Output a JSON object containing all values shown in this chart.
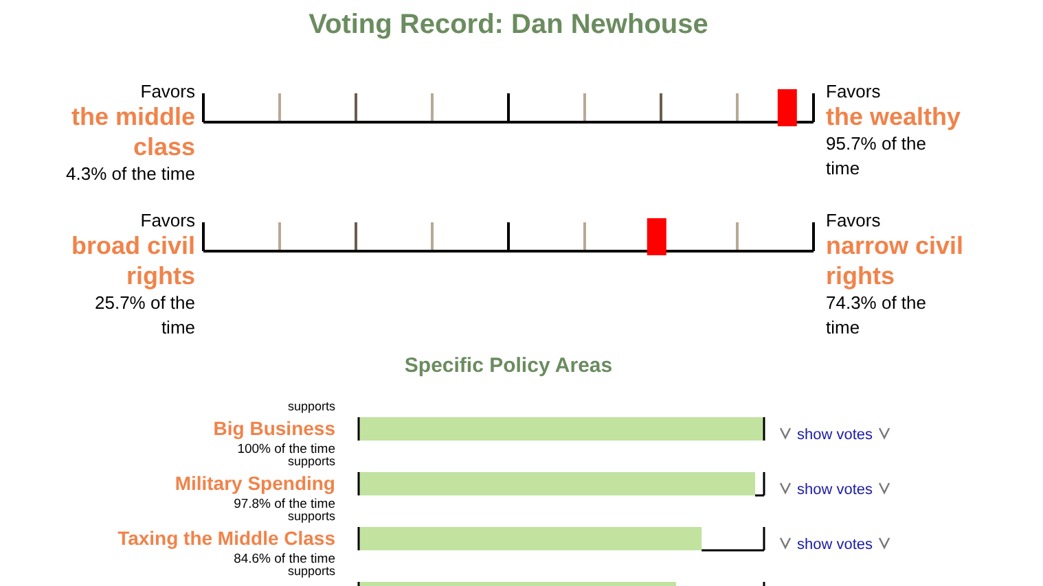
{
  "chart_data": [
    {
      "type": "other",
      "title": "Voting Record: Dan Newhouse",
      "categories": [
        "the middle class",
        "the wealthy"
      ],
      "values": [
        4.3,
        95.7
      ],
      "value_labels": [
        "4.3% of the time",
        "95.7% of the time"
      ],
      "annotations": [
        "Favors",
        "Favors"
      ],
      "color": "#ff0000"
    },
    {
      "type": "other",
      "categories": [
        "broad civil rights",
        "narrow civil rights"
      ],
      "values": [
        25.7,
        74.3
      ],
      "value_labels": [
        "25.7% of the time",
        "74.3% of the time"
      ],
      "annotations": [
        "Favors",
        "Favors"
      ],
      "color": "#ff0000"
    },
    {
      "type": "bar",
      "orientation": "horizontal",
      "title": "Specific Policy Areas",
      "categories": [
        "Big Business",
        "Military Spending",
        "Taxing the Middle Class",
        null
      ],
      "values": [
        100,
        97.8,
        84.6,
        78.3
      ],
      "value_labels": [
        "100% of the time",
        "97.8% of the time",
        "84.6% of the time",
        null
      ],
      "annotations": [
        "supports",
        "supports",
        "supports",
        "supports",
        "show votes",
        "show votes",
        "show votes"
      ],
      "color": "#c2e2a0"
    }
  ]
}
